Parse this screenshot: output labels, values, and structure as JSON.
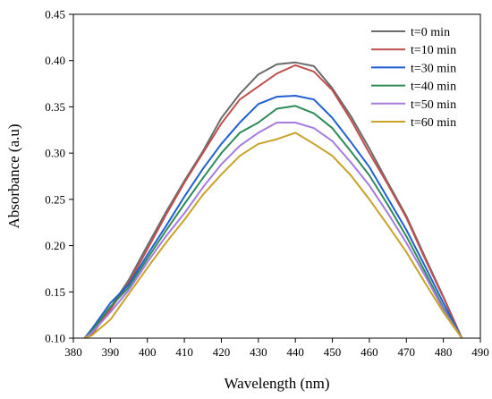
{
  "chart_data": {
    "type": "line",
    "xlabel": "Wavelength (nm)",
    "ylabel": "Absorbance (a.u)",
    "xlim": [
      380,
      490
    ],
    "ylim": [
      0.1,
      0.45
    ],
    "xticks": [
      "380",
      "390",
      "400",
      "410",
      "420",
      "430",
      "440",
      "450",
      "460",
      "470",
      "480",
      "490"
    ],
    "yticks": [
      "0.10",
      "0.15",
      "0.20",
      "0.25",
      "0.30",
      "0.35",
      "0.40",
      "0.45"
    ],
    "grid": false,
    "legend_position": "top-right",
    "x": [
      383,
      385,
      390,
      395,
      400,
      405,
      410,
      415,
      420,
      425,
      430,
      435,
      440,
      445,
      450,
      455,
      460,
      465,
      470,
      475,
      480,
      485
    ],
    "series": [
      {
        "name": "t=0 min",
        "color": "#6b6b6b",
        "values": [
          0.1,
          0.105,
          0.133,
          0.163,
          0.2,
          0.236,
          0.27,
          0.302,
          0.338,
          0.364,
          0.385,
          0.396,
          0.398,
          0.394,
          0.37,
          0.34,
          0.305,
          0.268,
          0.232,
          0.188,
          0.145,
          0.1
        ]
      },
      {
        "name": "t=10 min",
        "color": "#c0504d",
        "values": [
          0.1,
          0.104,
          0.131,
          0.16,
          0.196,
          0.233,
          0.268,
          0.3,
          0.332,
          0.358,
          0.372,
          0.386,
          0.395,
          0.388,
          0.368,
          0.336,
          0.3,
          0.266,
          0.23,
          0.186,
          0.144,
          0.1
        ]
      },
      {
        "name": "t=30 min",
        "color": "#1f5fd1",
        "values": [
          0.1,
          0.11,
          0.138,
          0.158,
          0.19,
          0.221,
          0.253,
          0.283,
          0.31,
          0.333,
          0.353,
          0.361,
          0.362,
          0.358,
          0.338,
          0.312,
          0.285,
          0.251,
          0.217,
          0.178,
          0.138,
          0.1
        ]
      },
      {
        "name": "t=40 min",
        "color": "#2e8b57",
        "values": [
          0.1,
          0.108,
          0.134,
          0.155,
          0.186,
          0.216,
          0.245,
          0.273,
          0.3,
          0.322,
          0.333,
          0.348,
          0.351,
          0.343,
          0.327,
          0.302,
          0.276,
          0.244,
          0.21,
          0.172,
          0.133,
          0.1
        ]
      },
      {
        "name": "t=50 min",
        "color": "#a57be0",
        "values": [
          0.1,
          0.106,
          0.128,
          0.152,
          0.182,
          0.21,
          0.235,
          0.263,
          0.288,
          0.308,
          0.322,
          0.333,
          0.333,
          0.327,
          0.313,
          0.29,
          0.265,
          0.235,
          0.203,
          0.168,
          0.131,
          0.1
        ]
      },
      {
        "name": "t=60 min",
        "color": "#c9a227",
        "values": [
          0.1,
          0.103,
          0.12,
          0.148,
          0.176,
          0.203,
          0.228,
          0.255,
          0.277,
          0.297,
          0.31,
          0.315,
          0.322,
          0.31,
          0.297,
          0.276,
          0.25,
          0.222,
          0.193,
          0.16,
          0.128,
          0.1
        ]
      }
    ]
  }
}
